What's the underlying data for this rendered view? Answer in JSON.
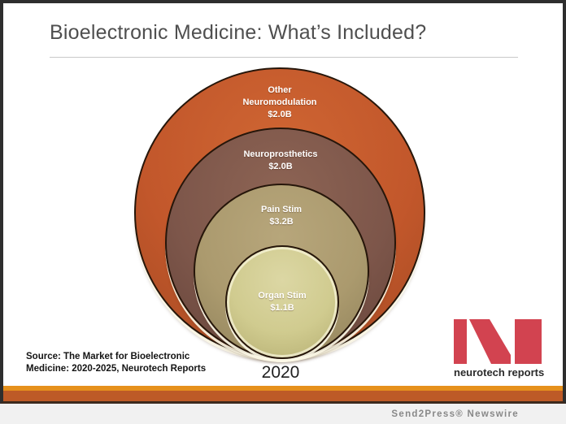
{
  "slide": {
    "title": "Bioelectronic Medicine: What’s Included?",
    "source_line1": "Source: The Market for Bioelectronic",
    "source_line2": "Medicine: 2020-2025, Neurotech Reports"
  },
  "chart_data": {
    "type": "nested-circles",
    "title": "Bioelectronic Medicine: What’s Included?",
    "year_label": "2020",
    "value_unit": "$B",
    "source": "Source: The Market for Bioelectronic Medicine: 2020-2025, Neurotech Reports",
    "segments": [
      {
        "label": "Other Neuromodulation",
        "label_lines": [
          "Other",
          "Neuromodulation"
        ],
        "value": 2.0,
        "value_text": "$2.0B",
        "colors": {
          "highlight": "#cf6633",
          "fill": "#c2572b",
          "edge": "#a34a22"
        }
      },
      {
        "label": "Neuroprosthetics",
        "label_lines": [
          "Neuroprosthetics"
        ],
        "value": 2.0,
        "value_text": "$2.0B",
        "colors": {
          "highlight": "#8d6454",
          "fill": "#7d564a",
          "edge": "#65443a"
        }
      },
      {
        "label": "Pain Stim",
        "label_lines": [
          "Pain Stim"
        ],
        "value": 3.2,
        "value_text": "$3.2B",
        "colors": {
          "highlight": "#b7a67b",
          "fill": "#ab9a6e",
          "edge": "#8f815a"
        }
      },
      {
        "label": "Organ Stim",
        "label_lines": [
          "Organ Stim"
        ],
        "value": 1.1,
        "value_text": "$1.1B",
        "colors": {
          "highlight": "#dcd7a4",
          "fill": "#d0cb8f",
          "edge": "#b5ae72"
        }
      }
    ]
  },
  "logo": {
    "text": "neurotech reports",
    "color": "#d24350"
  },
  "stripes": {
    "top": "#e6911c",
    "main": "#bd5a27"
  },
  "footer": {
    "text": "Send2Press® Newswire"
  }
}
